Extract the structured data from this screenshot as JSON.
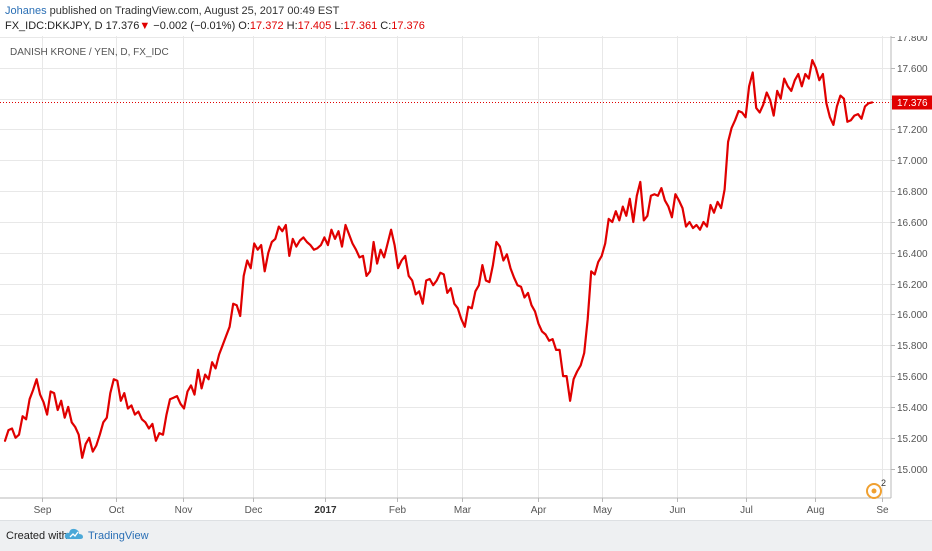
{
  "header": {
    "author": "Johanes",
    "published_text": " published on TradingView.com, August 25, 2017 00:49 EST",
    "symbol": "FX_IDC:DKKJPY, D",
    "last": "17.376",
    "change_arrow": "▼",
    "change": "−0.002 (−0.01%)",
    "open_label": "O:",
    "open": "17.372",
    "high_label": "H:",
    "high": "17.405",
    "low_label": "L:",
    "low": "17.361",
    "close_label": "C:",
    "close": "17.376"
  },
  "footer": {
    "created_with": "Created with",
    "brand": "TradingView",
    "logo_icon": "tradingview-cloud-icon"
  },
  "colors": {
    "line": "#e00000",
    "grid": "#e8e8e8",
    "axis_text": "#555555",
    "price_tag": "#e00000",
    "footer_bg": "#eef0f2",
    "brand": "#2a6fb5"
  },
  "chart_data": {
    "type": "line",
    "title": "DANISH KRONE / YEN, D, FX_IDC",
    "x_labels": [
      "Sep",
      "Oct",
      "Nov",
      "Dec",
      "2017",
      "Feb",
      "Mar",
      "Apr",
      "May",
      "Jun",
      "Jul",
      "Aug",
      "Se"
    ],
    "y_ticks": [
      "17.800",
      "17.600",
      "17.400",
      "17.200",
      "17.000",
      "16.800",
      "16.600",
      "16.400",
      "16.200",
      "16.000",
      "15.800",
      "15.600",
      "15.400",
      "15.200",
      "15.000"
    ],
    "ylim": [
      14.9,
      17.8
    ],
    "grid": true,
    "last_price": 17.376,
    "last_price_label": "17.376",
    "badge_icon": "clock-badge-icon",
    "badge_count": "2",
    "series": [
      {
        "values": [
          15.18,
          15.25,
          15.26,
          15.2,
          15.22,
          15.34,
          15.32,
          15.45,
          15.51,
          15.58,
          15.48,
          15.43,
          15.35,
          15.5,
          15.49,
          15.38,
          15.44,
          15.33,
          15.4,
          15.3,
          15.27,
          15.22,
          15.07,
          15.16,
          15.2,
          15.11,
          15.15,
          15.22,
          15.3,
          15.33,
          15.49,
          15.58,
          15.57,
          15.44,
          15.49,
          15.39,
          15.41,
          15.35,
          15.37,
          15.32,
          15.3,
          15.26,
          15.29,
          15.18,
          15.23,
          15.22,
          15.35,
          15.45,
          15.46,
          15.47,
          15.42,
          15.39,
          15.5,
          15.54,
          15.48,
          15.64,
          15.52,
          15.61,
          15.58,
          15.69,
          15.65,
          15.74,
          15.8,
          15.86,
          15.92,
          16.07,
          16.06,
          15.99,
          16.25,
          16.35,
          16.3,
          16.46,
          16.42,
          16.45,
          16.28,
          16.4,
          16.47,
          16.49,
          16.57,
          16.54,
          16.58,
          16.38,
          16.49,
          16.44,
          16.48,
          16.5,
          16.47,
          16.45,
          16.42,
          16.43,
          16.45,
          16.5,
          16.45,
          16.55,
          16.49,
          16.54,
          16.44,
          16.58,
          16.52,
          16.46,
          16.42,
          16.37,
          16.38,
          16.25,
          16.28,
          16.47,
          16.33,
          16.42,
          16.37,
          16.46,
          16.55,
          16.45,
          16.3,
          16.35,
          16.38,
          16.25,
          16.22,
          16.13,
          16.15,
          16.07,
          16.22,
          16.23,
          16.19,
          16.22,
          16.27,
          16.26,
          16.14,
          16.17,
          16.07,
          16.04,
          15.97,
          15.92,
          16.05,
          16.04,
          16.15,
          16.19,
          16.32,
          16.22,
          16.21,
          16.32,
          16.47,
          16.44,
          16.35,
          16.39,
          16.3,
          16.24,
          16.19,
          16.18,
          16.11,
          16.14,
          16.06,
          16.02,
          15.94,
          15.89,
          15.87,
          15.83,
          15.84,
          15.77,
          15.77,
          15.6,
          15.6,
          15.44,
          15.58,
          15.63,
          15.67,
          15.75,
          15.97,
          16.28,
          16.26,
          16.34,
          16.38,
          16.46,
          16.62,
          16.6,
          16.67,
          16.61,
          16.7,
          16.64,
          16.75,
          16.6,
          16.77,
          16.86,
          16.61,
          16.64,
          16.77,
          16.78,
          16.77,
          16.82,
          16.74,
          16.7,
          16.63,
          16.78,
          16.74,
          16.69,
          16.57,
          16.6,
          16.56,
          16.58,
          16.55,
          16.6,
          16.57,
          16.71,
          16.66,
          16.73,
          16.69,
          16.81,
          17.12,
          17.21,
          17.26,
          17.32,
          17.31,
          17.28,
          17.48,
          17.57,
          17.34,
          17.31,
          17.36,
          17.44,
          17.39,
          17.29,
          17.45,
          17.4,
          17.53,
          17.48,
          17.45,
          17.52,
          17.56,
          17.48,
          17.56,
          17.53,
          17.65,
          17.6,
          17.52,
          17.56,
          17.37,
          17.28,
          17.23,
          17.35,
          17.42,
          17.4,
          17.25,
          17.26,
          17.29,
          17.3,
          17.27,
          17.35,
          17.37,
          17.376
        ]
      }
    ]
  }
}
